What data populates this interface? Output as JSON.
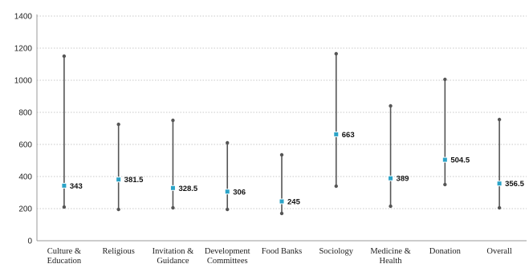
{
  "chart_data": {
    "type": "range",
    "title": "",
    "xlabel": "",
    "ylabel": "",
    "ylim": [
      0,
      1400
    ],
    "yticks": [
      0,
      200,
      400,
      600,
      800,
      1000,
      1200,
      1400
    ],
    "grid": "horizontal-dotted",
    "categories": [
      [
        "Culture &",
        "Education"
      ],
      [
        "Religious"
      ],
      [
        "Invitation &",
        "Guidance"
      ],
      [
        "Development",
        "Committees"
      ],
      [
        "Food Banks"
      ],
      [
        "Sociology"
      ],
      [
        "Medicine &",
        "Health"
      ],
      [
        "Donation"
      ],
      [
        "Overall"
      ]
    ],
    "series": [
      {
        "role": "max",
        "values": [
          1150,
          725,
          750,
          610,
          535,
          1165,
          840,
          1005,
          755
        ]
      },
      {
        "role": "min",
        "values": [
          210,
          195,
          205,
          195,
          170,
          340,
          215,
          350,
          205
        ]
      },
      {
        "role": "mean",
        "values": [
          343,
          381.5,
          328.5,
          306,
          245,
          663,
          389,
          504.5,
          356.5
        ],
        "labels": [
          "343",
          "381.5",
          "328.5",
          "306",
          "245",
          "663",
          "389",
          "504.5",
          "356.5"
        ]
      }
    ],
    "colors": {
      "range": "#555555",
      "mean": "#2aa3c7",
      "grid": "#c8c8c8",
      "axis": "#9a9a9a"
    }
  }
}
